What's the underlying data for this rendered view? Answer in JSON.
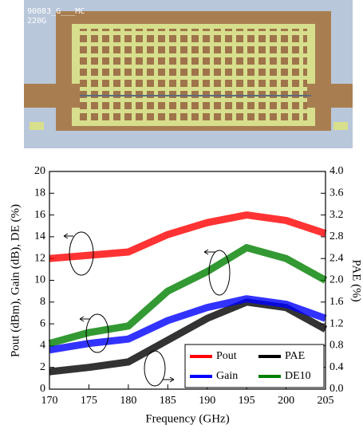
{
  "chip_image_labels": [
    "90083_G___MC",
    "220G"
  ],
  "chart_data": {
    "type": "line",
    "x_label": "Frequency (GHz)",
    "y_label": "Pout (dBm), Gain (dB), DE (%)",
    "y2_label": "PAE (%)",
    "x": [
      170,
      175,
      180,
      185,
      190,
      195,
      200,
      205
    ],
    "xlim": [
      170,
      205
    ],
    "xticks": [
      170,
      175,
      180,
      185,
      190,
      195,
      200,
      205
    ],
    "ylim": [
      0,
      20
    ],
    "yticks": [
      0,
      2,
      4,
      6,
      8,
      10,
      12,
      14,
      16,
      18,
      20
    ],
    "y2lim": [
      0,
      4
    ],
    "y2ticks": [
      {
        "value": 0,
        "label": "0.0"
      },
      0.4,
      0.8,
      1.2,
      1.6,
      {
        "value": 2,
        "label": "2.0"
      },
      2.4,
      2.8,
      3.2,
      3.6,
      {
        "value": 4,
        "label": "4.0"
      }
    ],
    "grid": false,
    "legend": "lower-right",
    "series": [
      {
        "name": "Pout",
        "color": "#ff0000",
        "values": [
          12.0,
          12.3,
          12.6,
          14.2,
          15.3,
          16.0,
          15.5,
          14.3
        ]
      },
      {
        "name": "PAE",
        "color": "#000000",
        "axis": "y2",
        "values": [
          0.32,
          0.4,
          0.5,
          0.9,
          1.3,
          1.6,
          1.5,
          1.1
        ]
      },
      {
        "name": "Gain",
        "color": "#0000ff",
        "values": [
          3.6,
          4.2,
          4.6,
          6.3,
          7.5,
          8.3,
          7.8,
          6.5
        ]
      },
      {
        "name": "DE10",
        "color": "#008000",
        "values": [
          4.2,
          5.2,
          5.8,
          9.0,
          10.8,
          13.0,
          12.0,
          10.0
        ]
      }
    ]
  }
}
